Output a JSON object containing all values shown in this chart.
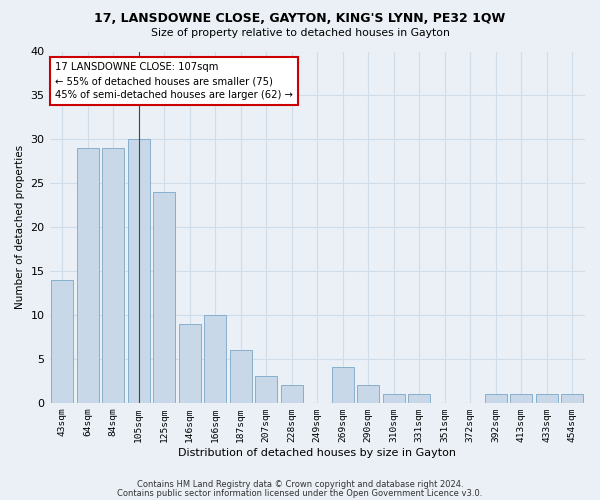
{
  "title": "17, LANSDOWNE CLOSE, GAYTON, KING'S LYNN, PE32 1QW",
  "subtitle": "Size of property relative to detached houses in Gayton",
  "xlabel": "Distribution of detached houses by size in Gayton",
  "ylabel": "Number of detached properties",
  "categories": [
    "43sqm",
    "64sqm",
    "84sqm",
    "105sqm",
    "125sqm",
    "146sqm",
    "166sqm",
    "187sqm",
    "207sqm",
    "228sqm",
    "249sqm",
    "269sqm",
    "290sqm",
    "310sqm",
    "331sqm",
    "351sqm",
    "372sqm",
    "392sqm",
    "413sqm",
    "433sqm",
    "454sqm"
  ],
  "values": [
    14,
    29,
    29,
    30,
    24,
    9,
    10,
    6,
    3,
    2,
    0,
    4,
    2,
    1,
    1,
    0,
    0,
    1,
    1,
    1,
    1
  ],
  "bar_color": "#c8d8e8",
  "bar_edge_color": "#7aa8c8",
  "subject_bar_index": 3,
  "subject_label": "17 LANSDOWNE CLOSE: 107sqm",
  "annotation_line1": "← 55% of detached houses are smaller (75)",
  "annotation_line2": "45% of semi-detached houses are larger (62) →",
  "annotation_box_color": "#ffffff",
  "annotation_box_edge_color": "#cc0000",
  "vline_color": "#444444",
  "grid_color": "#d0dce8",
  "background_color": "#eaf0f6",
  "ylim": [
    0,
    40
  ],
  "yticks": [
    0,
    5,
    10,
    15,
    20,
    25,
    30,
    35,
    40
  ],
  "footnote1": "Contains HM Land Registry data © Crown copyright and database right 2024.",
  "footnote2": "Contains public sector information licensed under the Open Government Licence v3.0."
}
